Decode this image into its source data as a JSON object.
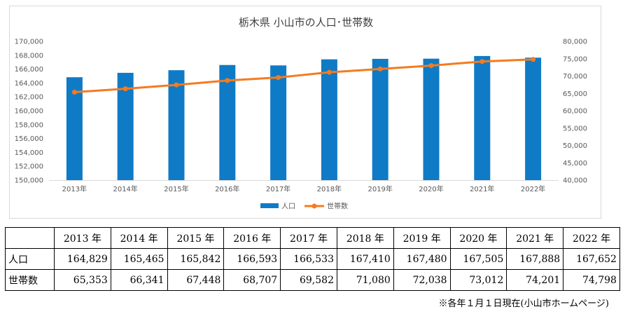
{
  "chart_data": {
    "type": "bar+line",
    "title": "栃木県 小山市の人口･世帯数",
    "categories": [
      "2013年",
      "2014年",
      "2015年",
      "2016年",
      "2017年",
      "2018年",
      "2019年",
      "2020年",
      "2021年",
      "2022年"
    ],
    "series": [
      {
        "name": "人口",
        "type": "bar",
        "axis": "left",
        "color": "#0F7BC6",
        "values": [
          164829,
          165465,
          165842,
          166593,
          166533,
          167410,
          167480,
          167505,
          167888,
          167652
        ]
      },
      {
        "name": "世帯数",
        "type": "line",
        "axis": "right",
        "color": "#F47B20",
        "values": [
          65353,
          66341,
          67448,
          68707,
          69582,
          71080,
          72038,
          73012,
          74201,
          74798
        ]
      }
    ],
    "ylim_left": [
      150000,
      170000
    ],
    "ylim_right": [
      40000,
      80000
    ],
    "yticks_left": [
      "150,000",
      "152,000",
      "154,000",
      "156,000",
      "158,000",
      "160,000",
      "162,000",
      "164,000",
      "166,000",
      "168,000",
      "170,000"
    ],
    "yticks_right": [
      "40,000",
      "45,000",
      "50,000",
      "55,000",
      "60,000",
      "65,000",
      "70,000",
      "75,000",
      "80,000"
    ],
    "grid": false,
    "legend_position": "bottom"
  },
  "table": {
    "headers": [
      "2013 年",
      "2014 年",
      "2015 年",
      "2016 年",
      "2017 年",
      "2018 年",
      "2019 年",
      "2020 年",
      "2021 年",
      "2022 年"
    ],
    "rows": [
      {
        "label": "人口",
        "values": [
          "164,829",
          "165,465",
          "165,842",
          "166,593",
          "166,533",
          "167,410",
          "167,480",
          "167,505",
          "167,888",
          "167,652"
        ]
      },
      {
        "label": "世帯数",
        "values": [
          "65,353",
          "66,341",
          "67,448",
          "68,707",
          "69,582",
          "71,080",
          "72,038",
          "73,012",
          "74,201",
          "74,798"
        ]
      }
    ]
  },
  "note": "※各年１月１日現在(小山市ホームページ)"
}
